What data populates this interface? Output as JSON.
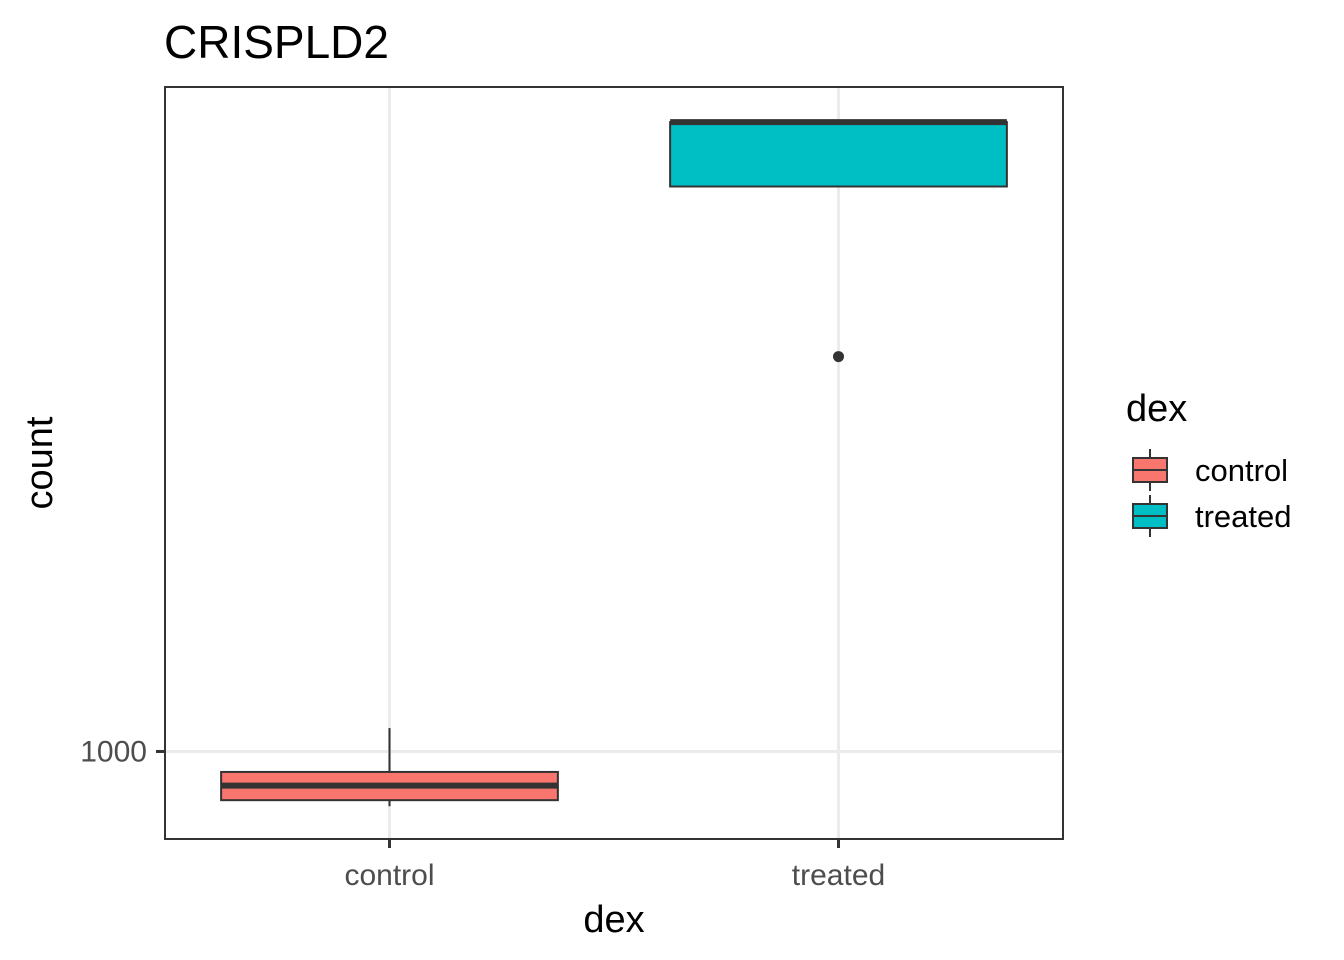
{
  "chart_data": {
    "type": "boxplot",
    "title": "CRISPLD2",
    "xlabel": "dex",
    "ylabel": "count",
    "scale": "log10",
    "ylim": [
      700,
      15000
    ],
    "yticks": [
      {
        "value": 1000,
        "label": "1000"
      }
    ],
    "grid": true,
    "categories": [
      "control",
      "treated"
    ],
    "series": [
      {
        "name": "control",
        "color": "#F8766D",
        "whisker_low": 800,
        "q1": 820,
        "median": 870,
        "q3": 920,
        "whisker_high": 1100,
        "outliers": []
      },
      {
        "name": "treated",
        "color": "#00BFC4",
        "whisker_low": 10000,
        "q1": 10000,
        "median": 13000,
        "q3": 13000,
        "whisker_high": 13000,
        "outliers": [
          5000
        ]
      }
    ],
    "legend": {
      "title": "dex",
      "position": "right",
      "entries": [
        {
          "label": "control",
          "color": "#F8766D"
        },
        {
          "label": "treated",
          "color": "#00BFC4"
        }
      ]
    }
  }
}
